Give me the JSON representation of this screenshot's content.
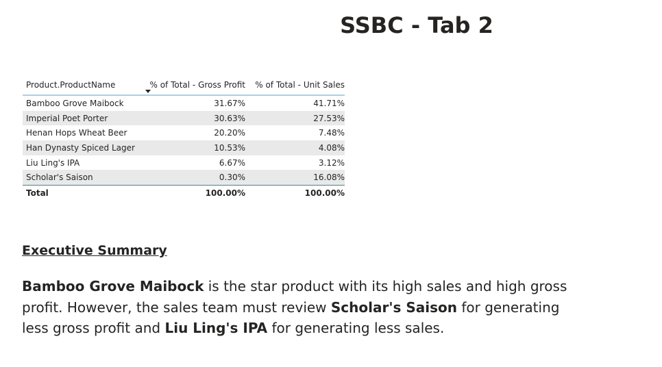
{
  "page": {
    "title": "SSBC - Tab 2"
  },
  "table": {
    "headers": {
      "product": "Product.ProductName",
      "gross_profit": "% of Total - Gross Profit",
      "unit_sales": "% of Total - Unit Sales"
    },
    "sort_icon": "sort-descending-icon",
    "rows": [
      {
        "product": "Bamboo Grove Maibock",
        "gross_profit": "31.67%",
        "unit_sales": "41.71%"
      },
      {
        "product": "Imperial Poet Porter",
        "gross_profit": "30.63%",
        "unit_sales": "27.53%"
      },
      {
        "product": "Henan Hops Wheat Beer",
        "gross_profit": "20.20%",
        "unit_sales": "7.48%"
      },
      {
        "product": "Han Dynasty Spiced Lager",
        "gross_profit": "10.53%",
        "unit_sales": "4.08%"
      },
      {
        "product": "Liu Ling's IPA",
        "gross_profit": "6.67%",
        "unit_sales": "3.12%"
      },
      {
        "product": "Scholar's Saison",
        "gross_profit": "0.30%",
        "unit_sales": "16.08%"
      }
    ],
    "total": {
      "label": "Total",
      "gross_profit": "100.00%",
      "unit_sales": "100.00%"
    },
    "colors": {
      "header_rule": "#a8d1e7",
      "total_rule": "#2c8e9b",
      "alt_row": "#e9e9e9"
    }
  },
  "summary": {
    "heading": "Executive Summary",
    "p1_bold": "Bamboo Grove Maibock",
    "p1_text": " is the star product with its high sales and high gross profit. However, the sales team must review ",
    "p2_bold": "Scholar's Saison",
    "p2_text": " for generating less gross profit and ",
    "p3_bold": "Liu Ling's IPA",
    "p3_text": " for generating less sales."
  }
}
